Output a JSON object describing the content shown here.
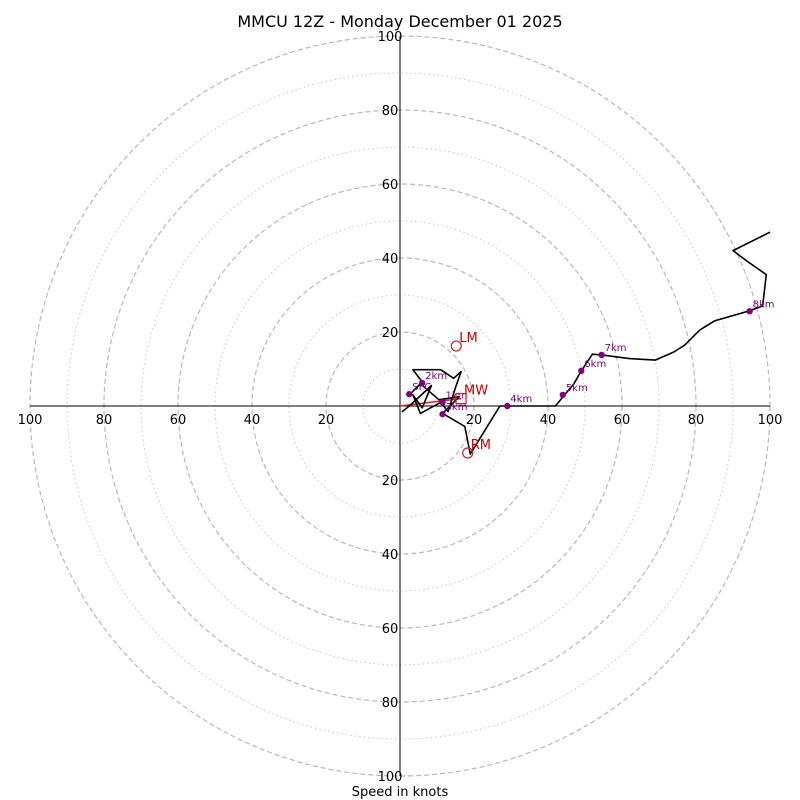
{
  "chart_data": {
    "type": "hodograph",
    "title": "MMCU 12Z - Monday December 01 2025",
    "xlabel": "Speed in knots",
    "rmax": 100,
    "ring_major": [
      20,
      40,
      60,
      80,
      100
    ],
    "ring_minor": [
      10,
      30,
      50,
      70,
      90
    ],
    "x_ticks": [
      "100",
      "80",
      "60",
      "40",
      "20",
      "20",
      "40",
      "60",
      "80",
      "100"
    ],
    "x_tick_values": [
      -100,
      -80,
      -60,
      -40,
      -20,
      20,
      40,
      60,
      80,
      100
    ],
    "y_ticks": [
      "100",
      "80",
      "60",
      "40",
      "20",
      "20",
      "40",
      "60",
      "80",
      "100"
    ],
    "y_tick_values": [
      100,
      80,
      60,
      40,
      20,
      -20,
      -40,
      -60,
      -80,
      -100
    ],
    "trace": [
      [
        0.5,
        -1.6
      ],
      [
        2.5,
        0
      ],
      [
        8.5,
        5.5
      ],
      [
        6,
        -0.5
      ],
      [
        3.5,
        3
      ],
      [
        5.5,
        -2
      ],
      [
        11,
        1
      ],
      [
        13,
        -1.5
      ],
      [
        15,
        5
      ],
      [
        16.5,
        9.3
      ],
      [
        14.5,
        7.5
      ],
      [
        11,
        9.8
      ],
      [
        3.5,
        9.8
      ],
      [
        6,
        6.5
      ],
      [
        2.5,
        3
      ],
      [
        5.5,
        6
      ],
      [
        10.5,
        1.7
      ],
      [
        16,
        2.5
      ],
      [
        11.5,
        -2
      ],
      [
        17.5,
        -5.5
      ],
      [
        19,
        -13
      ],
      [
        23,
        -6.5
      ],
      [
        27,
        0
      ],
      [
        32,
        0
      ],
      [
        42,
        0
      ],
      [
        44.5,
        3
      ],
      [
        47,
        6
      ],
      [
        49,
        9.5
      ],
      [
        52,
        14
      ],
      [
        54.5,
        13.8
      ],
      [
        62,
        12.8
      ],
      [
        69,
        12.4
      ],
      [
        74,
        14.6
      ],
      [
        77,
        16.5
      ],
      [
        81,
        20.5
      ],
      [
        85,
        23
      ],
      [
        94,
        25.6
      ],
      [
        98,
        27
      ],
      [
        99,
        35.5
      ],
      [
        94,
        39
      ],
      [
        90,
        42
      ],
      [
        100,
        47
      ]
    ],
    "heights": [
      {
        "label": "SFC",
        "u": 2.5,
        "v": 3.2
      },
      {
        "label": "1km",
        "u": 11.5,
        "v": 1.0
      },
      {
        "label": "2km",
        "u": 6.0,
        "v": 6.2
      },
      {
        "label": "3km",
        "u": 11.5,
        "v": -2.2
      },
      {
        "label": "4km",
        "u": 29.0,
        "v": 0.0
      },
      {
        "label": "5km",
        "u": 44.0,
        "v": 3.0
      },
      {
        "label": "6km",
        "u": 49.0,
        "v": 9.5
      },
      {
        "label": "7km",
        "u": 54.5,
        "v": 13.8
      },
      {
        "label": "8km",
        "u": 94.5,
        "v": 25.6
      }
    ],
    "motions": [
      {
        "label": "LM",
        "u": 15.2,
        "v": 16.2,
        "marker": "circle"
      },
      {
        "label": "MW",
        "u": 16.5,
        "v": 2.0,
        "marker": "square"
      },
      {
        "label": "RM",
        "u": 18.3,
        "v": -12.7,
        "marker": "circle"
      }
    ],
    "shear_vector": {
      "from": [
        0,
        0
      ],
      "to": [
        16.5,
        2.0
      ]
    }
  }
}
